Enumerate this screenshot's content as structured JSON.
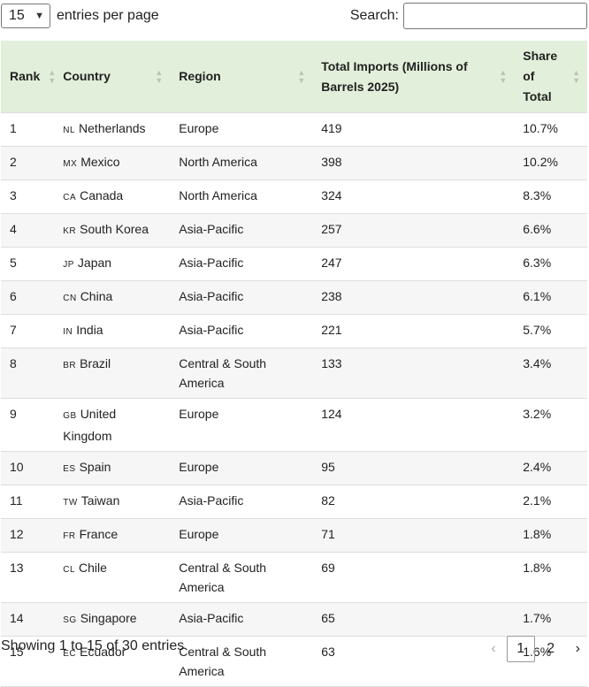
{
  "controls": {
    "length_value": "15",
    "length_label": "entries per page",
    "search_label": "Search:",
    "search_value": ""
  },
  "columns": [
    "Rank",
    "Country",
    "Region",
    "Total Imports (Millions of Barrels 2025)",
    "Share of Total"
  ],
  "rows": [
    {
      "rank": "1",
      "code": "NL",
      "country": "Netherlands",
      "region": "Europe",
      "imports": "419",
      "share": "10.7%"
    },
    {
      "rank": "2",
      "code": "MX",
      "country": "Mexico",
      "region": "North America",
      "imports": "398",
      "share": "10.2%"
    },
    {
      "rank": "3",
      "code": "CA",
      "country": "Canada",
      "region": "North America",
      "imports": "324",
      "share": "8.3%"
    },
    {
      "rank": "4",
      "code": "KR",
      "country": "South Korea",
      "region": "Asia-Pacific",
      "imports": "257",
      "share": "6.6%"
    },
    {
      "rank": "5",
      "code": "JP",
      "country": "Japan",
      "region": "Asia-Pacific",
      "imports": "247",
      "share": "6.3%"
    },
    {
      "rank": "6",
      "code": "CN",
      "country": "China",
      "region": "Asia-Pacific",
      "imports": "238",
      "share": "6.1%"
    },
    {
      "rank": "7",
      "code": "IN",
      "country": "India",
      "region": "Asia-Pacific",
      "imports": "221",
      "share": "5.7%"
    },
    {
      "rank": "8",
      "code": "BR",
      "country": "Brazil",
      "region": "Central & South America",
      "imports": "133",
      "share": "3.4%"
    },
    {
      "rank": "9",
      "code": "GB",
      "country": "United Kingdom",
      "region": "Europe",
      "imports": "124",
      "share": "3.2%"
    },
    {
      "rank": "10",
      "code": "ES",
      "country": "Spain",
      "region": "Europe",
      "imports": "95",
      "share": "2.4%"
    },
    {
      "rank": "11",
      "code": "TW",
      "country": "Taiwan",
      "region": "Asia-Pacific",
      "imports": "82",
      "share": "2.1%"
    },
    {
      "rank": "12",
      "code": "FR",
      "country": "France",
      "region": "Europe",
      "imports": "71",
      "share": "1.8%"
    },
    {
      "rank": "13",
      "code": "CL",
      "country": "Chile",
      "region": "Central & South America",
      "imports": "69",
      "share": "1.8%"
    },
    {
      "rank": "14",
      "code": "SG",
      "country": "Singapore",
      "region": "Asia-Pacific",
      "imports": "65",
      "share": "1.7%"
    },
    {
      "rank": "15",
      "code": "EC",
      "country": "Ecuador",
      "region": "Central & South America",
      "imports": "63",
      "share": "1.6%"
    }
  ],
  "footer": {
    "info": "Showing 1 to 15 of 30 entries",
    "prev": "‹",
    "pages": [
      "1",
      "2"
    ],
    "next": "›"
  },
  "colors": {
    "header_bg": "#e2efda",
    "stripe_bg": "#f6f6f6",
    "border": "#dddddd"
  },
  "icons": {
    "sort": "sort-both-icon",
    "dropdown": "chevron-down-icon"
  }
}
